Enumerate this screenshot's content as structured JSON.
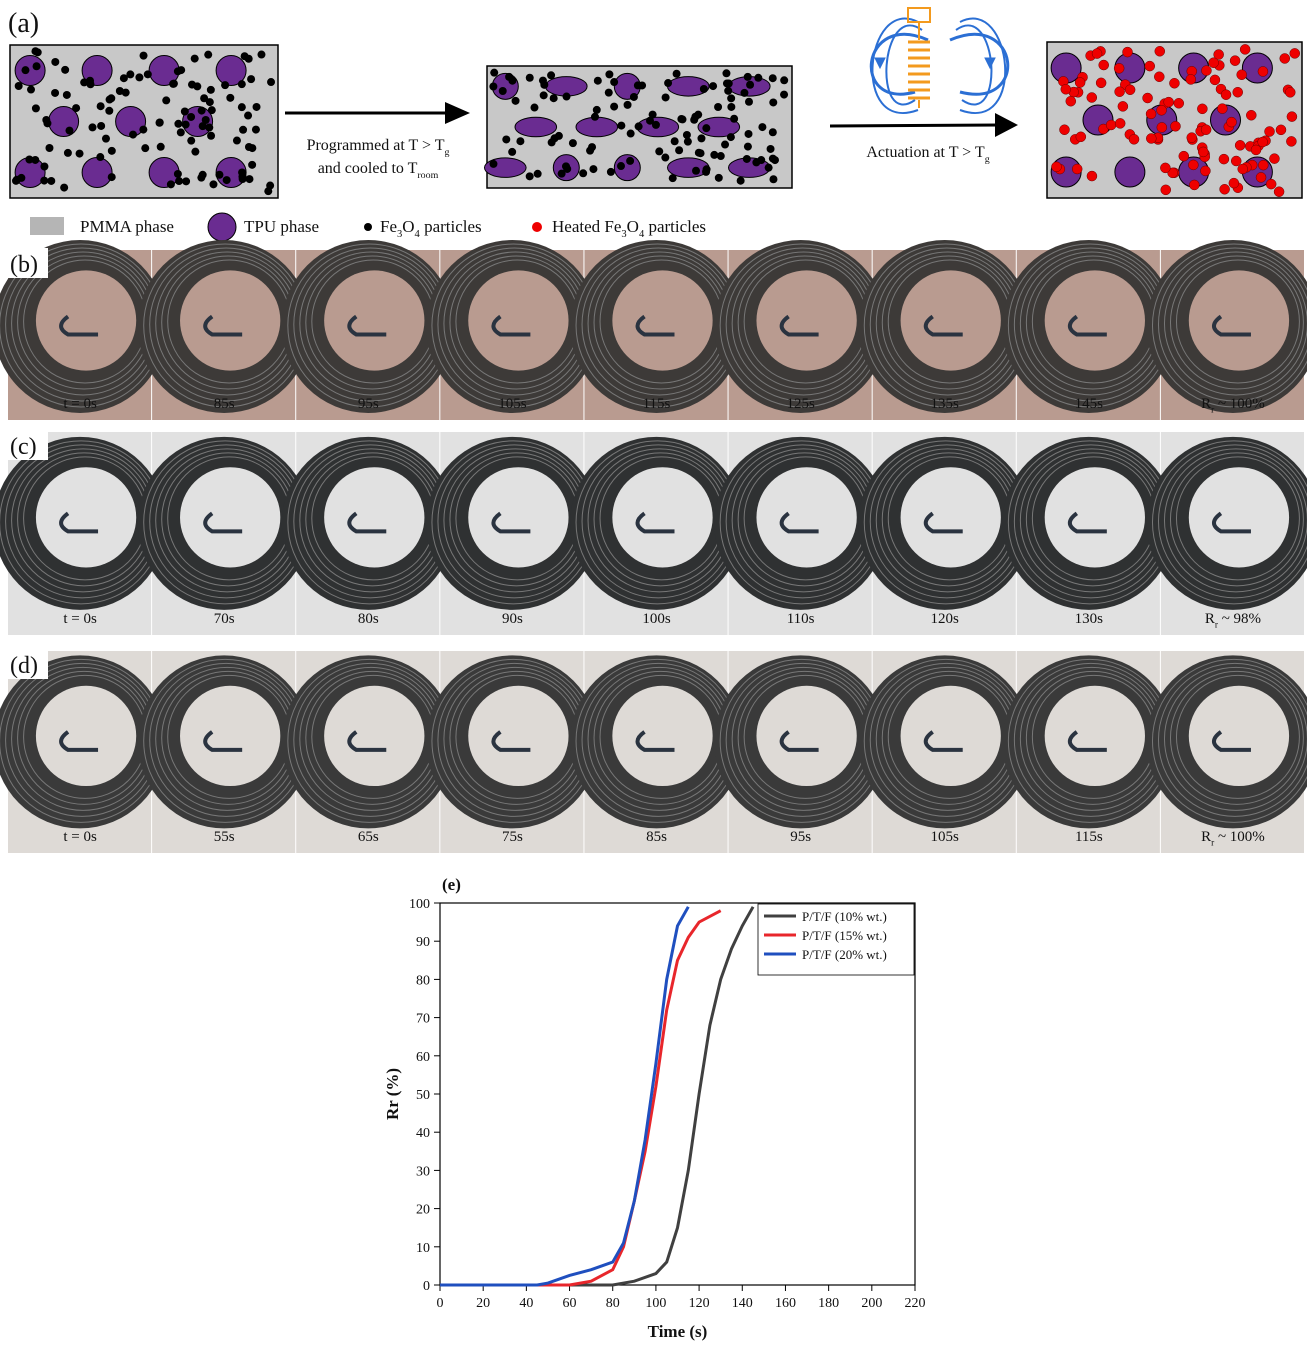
{
  "panel_a": {
    "label": "(a)",
    "arrow1": {
      "line1": [
        "Programmed at T > T",
        "g"
      ],
      "line2": [
        "and cooled to T",
        "room"
      ]
    },
    "arrow2": [
      "Actuation at T > T",
      "g"
    ]
  },
  "legend": [
    [
      "PMMA phase"
    ],
    [
      "TPU phase"
    ],
    [
      "Fe",
      "3",
      "O",
      "4",
      " particles"
    ],
    [
      "Heated Fe",
      "3",
      "O",
      "4",
      " particles"
    ]
  ],
  "panel_b": {
    "label": "(b)",
    "frames": [
      [
        "t = 0s"
      ],
      [
        "85s"
      ],
      [
        "95s"
      ],
      [
        "105s"
      ],
      [
        "115s"
      ],
      [
        "125s"
      ],
      [
        "135s"
      ],
      [
        "145s"
      ],
      [
        "R",
        "r",
        " ~ 100%"
      ]
    ]
  },
  "panel_c": {
    "label": "(c)",
    "frames": [
      [
        "t = 0s"
      ],
      [
        "70s"
      ],
      [
        "80s"
      ],
      [
        "90s"
      ],
      [
        "100s"
      ],
      [
        "110s"
      ],
      [
        "120s"
      ],
      [
        "130s"
      ],
      [
        "R",
        "r",
        " ~ 98%"
      ]
    ]
  },
  "panel_d": {
    "label": "(d)",
    "frames": [
      [
        "t = 0s"
      ],
      [
        "55s"
      ],
      [
        "65s"
      ],
      [
        "75s"
      ],
      [
        "85s"
      ],
      [
        "95s"
      ],
      [
        "105s"
      ],
      [
        "115s"
      ],
      [
        "R",
        "r",
        " ~ 100%"
      ]
    ]
  },
  "chart_data": {
    "type": "line",
    "title": "(e)",
    "x_label": "Time (s)",
    "y_label": "Rr (%)",
    "xlim": [
      0,
      220
    ],
    "xticks": [
      0,
      20,
      40,
      60,
      80,
      100,
      120,
      140,
      160,
      180,
      200,
      220
    ],
    "ylim": [
      0,
      100
    ],
    "yticks": [
      0,
      10,
      20,
      30,
      40,
      50,
      60,
      70,
      80,
      90,
      100
    ],
    "legend": "upper right",
    "series": [
      {
        "name": "P/T/F (10% wt.)",
        "color": "#404040",
        "x": [
          0,
          80,
          90,
          100,
          105,
          110,
          115,
          120,
          125,
          130,
          135,
          140,
          145
        ],
        "values": [
          0,
          0,
          1,
          3,
          6,
          15,
          30,
          50,
          68,
          80,
          88,
          94,
          99
        ]
      },
      {
        "name": "P/T/F (15% wt.)",
        "color": "#e8262b",
        "x": [
          0,
          60,
          70,
          80,
          85,
          90,
          95,
          100,
          105,
          110,
          115,
          120,
          130
        ],
        "values": [
          0,
          0,
          1,
          4,
          10,
          22,
          35,
          52,
          72,
          85,
          91,
          95,
          98
        ]
      },
      {
        "name": "P/T/F (20% wt.)",
        "color": "#1f4fbf",
        "x": [
          0,
          45,
          50,
          60,
          70,
          80,
          85,
          90,
          95,
          100,
          105,
          110,
          115
        ],
        "values": [
          0,
          0,
          0.5,
          2.5,
          4,
          6,
          11,
          22,
          38,
          58,
          80,
          94,
          99
        ]
      }
    ]
  }
}
